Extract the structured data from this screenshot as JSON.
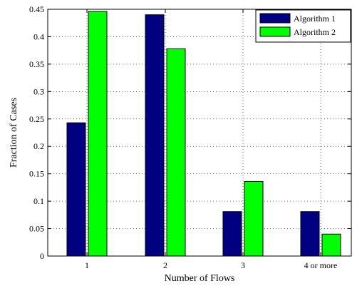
{
  "chart_data": {
    "type": "bar",
    "xlabel": "Number of Flows",
    "ylabel": "Fraction of Cases",
    "categories": [
      "1",
      "2",
      "3",
      "4 or more"
    ],
    "ylim": [
      0,
      0.45
    ],
    "yticks": [
      0,
      0.05,
      0.1,
      0.15,
      0.2,
      0.25,
      0.3,
      0.35,
      0.4,
      0.45
    ],
    "ytick_labels": [
      "0",
      "0.05",
      "0.1",
      "0.15",
      "0.2",
      "0.25",
      "0.3",
      "0.35",
      "0.4",
      "0.45"
    ],
    "grid": true,
    "grid_style": "dotted",
    "legend_position": "top-right",
    "series": [
      {
        "name": "Algorithm 1",
        "color": "#000080",
        "values": [
          0.243,
          0.44,
          0.081,
          0.081
        ]
      },
      {
        "name": "Algorithm 2",
        "color": "#00ff00",
        "values": [
          0.446,
          0.378,
          0.136,
          0.04
        ]
      }
    ]
  }
}
